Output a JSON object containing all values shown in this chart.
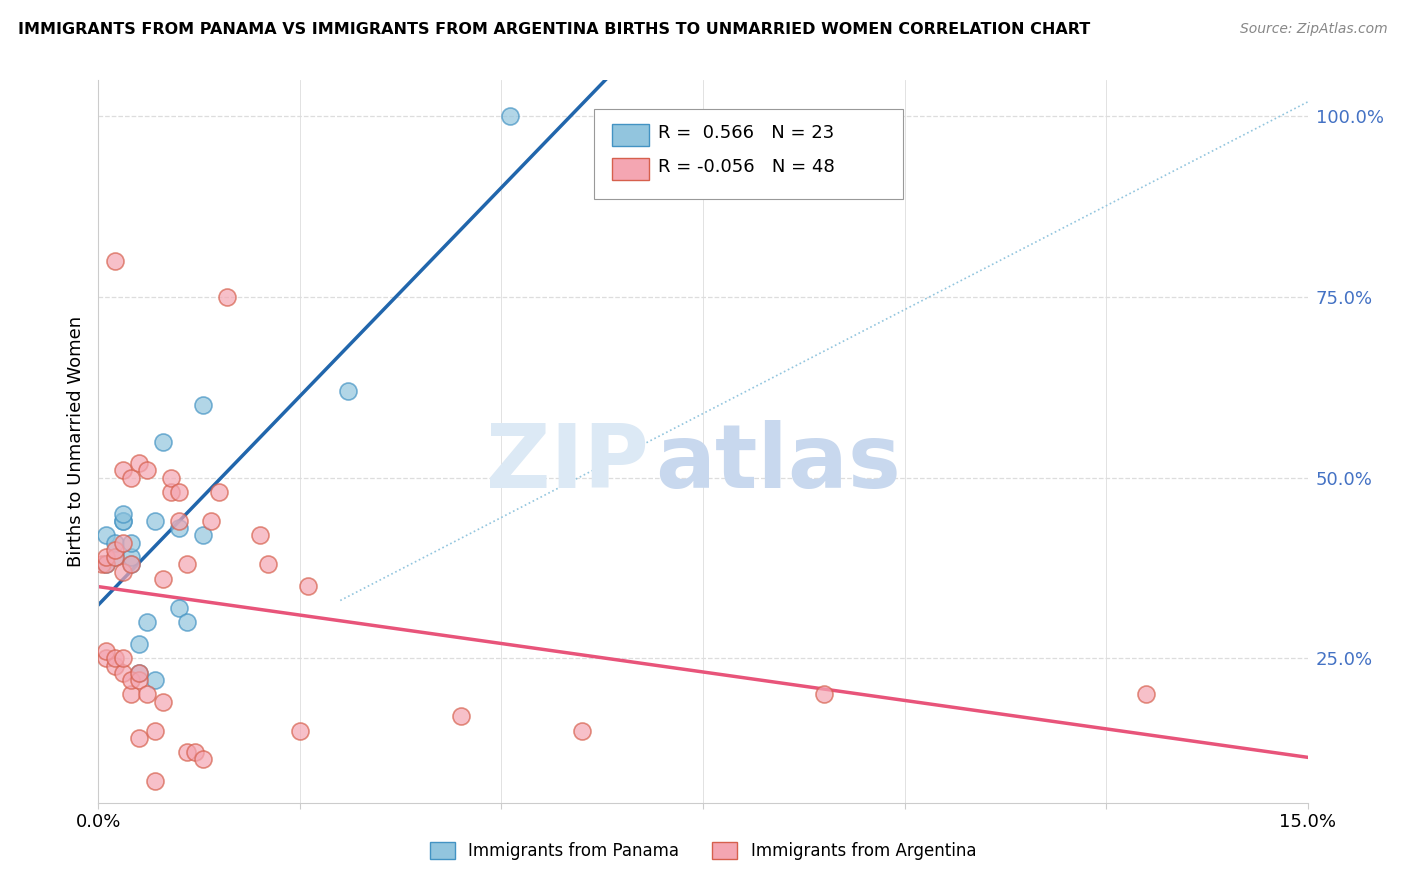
{
  "title": "IMMIGRANTS FROM PANAMA VS IMMIGRANTS FROM ARGENTINA BIRTHS TO UNMARRIED WOMEN CORRELATION CHART",
  "source": "Source: ZipAtlas.com",
  "ylabel": "Births to Unmarried Women",
  "ytick_labels": [
    "25.0%",
    "50.0%",
    "75.0%",
    "100.0%"
  ],
  "ytick_values": [
    0.25,
    0.5,
    0.75,
    1.0
  ],
  "xlim": [
    0.0,
    0.15
  ],
  "ylim": [
    0.05,
    1.05
  ],
  "xgrid_ticks": [
    0.0,
    0.025,
    0.05,
    0.075,
    0.1,
    0.125,
    0.15
  ],
  "panama_R": 0.566,
  "panama_N": 23,
  "argentina_R": -0.056,
  "argentina_N": 48,
  "panama_color": "#92c5de",
  "panama_edge_color": "#4393c3",
  "argentina_color": "#f4a6b2",
  "argentina_edge_color": "#d6604d",
  "trendline_panama_color": "#2166ac",
  "trendline_argentina_color": "#e8547a",
  "trendline_ref_color": "#92c5de",
  "grid_color": "#dddddd",
  "watermark_zip_color": "#dce9f5",
  "watermark_atlas_color": "#c8d8ee",
  "panama_x": [
    0.001,
    0.001,
    0.002,
    0.002,
    0.003,
    0.003,
    0.003,
    0.004,
    0.004,
    0.004,
    0.005,
    0.005,
    0.006,
    0.007,
    0.007,
    0.008,
    0.01,
    0.01,
    0.011,
    0.013,
    0.013,
    0.031,
    0.051
  ],
  "panama_y": [
    0.38,
    0.42,
    0.39,
    0.41,
    0.44,
    0.44,
    0.45,
    0.38,
    0.39,
    0.41,
    0.23,
    0.27,
    0.3,
    0.22,
    0.44,
    0.55,
    0.43,
    0.32,
    0.3,
    0.6,
    0.42,
    0.62,
    1.0
  ],
  "argentina_x": [
    0.0005,
    0.001,
    0.001,
    0.001,
    0.001,
    0.002,
    0.002,
    0.002,
    0.002,
    0.002,
    0.003,
    0.003,
    0.003,
    0.003,
    0.003,
    0.004,
    0.004,
    0.004,
    0.004,
    0.005,
    0.005,
    0.005,
    0.005,
    0.006,
    0.006,
    0.007,
    0.007,
    0.008,
    0.008,
    0.009,
    0.009,
    0.01,
    0.01,
    0.011,
    0.011,
    0.012,
    0.013,
    0.014,
    0.015,
    0.016,
    0.02,
    0.021,
    0.025,
    0.026,
    0.045,
    0.06,
    0.09,
    0.13
  ],
  "argentina_y": [
    0.38,
    0.25,
    0.26,
    0.38,
    0.39,
    0.24,
    0.25,
    0.39,
    0.4,
    0.8,
    0.23,
    0.25,
    0.37,
    0.41,
    0.51,
    0.2,
    0.22,
    0.38,
    0.5,
    0.14,
    0.22,
    0.23,
    0.52,
    0.2,
    0.51,
    0.08,
    0.15,
    0.19,
    0.36,
    0.48,
    0.5,
    0.44,
    0.48,
    0.12,
    0.38,
    0.12,
    0.11,
    0.44,
    0.48,
    0.75,
    0.42,
    0.38,
    0.15,
    0.35,
    0.17,
    0.15,
    0.2,
    0.2
  ],
  "legend_panama_label": "Immigrants from Panama",
  "legend_argentina_label": "Immigrants from Argentina"
}
